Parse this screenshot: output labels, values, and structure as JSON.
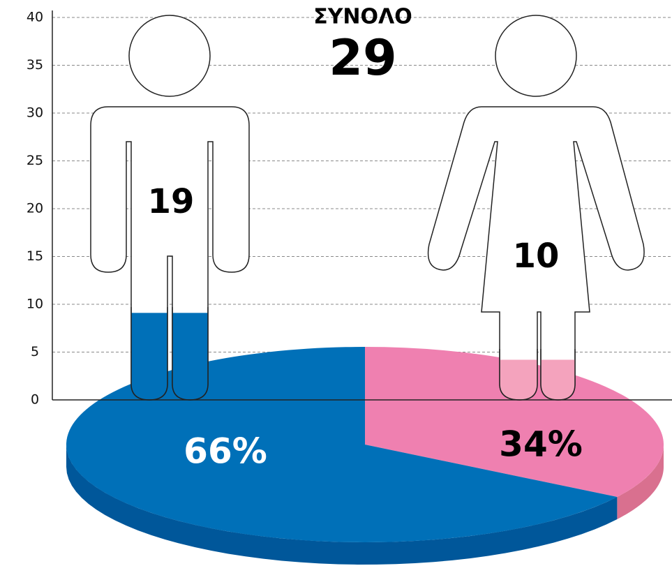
{
  "chart_data": {
    "type": "pictogram",
    "title": "ΣΥΝΟΛΟ",
    "total": 29,
    "ylim": [
      0,
      40
    ],
    "yticks": [
      0,
      5,
      10,
      15,
      20,
      25,
      30,
      35,
      40
    ],
    "grid": true,
    "figures": [
      {
        "value": 19,
        "level": 9.1,
        "fill_color": "#0070b8",
        "share": 66,
        "share_label": "66%",
        "share_color": "#0070b8",
        "side_color": "#00579a",
        "label_color": "#ffffff"
      },
      {
        "value": 10,
        "level": 4.2,
        "fill_color": "#f4a3bd",
        "share": 34,
        "share_label": "34%",
        "share_color": "#ef80b0",
        "side_color": "#d9708f",
        "label_color": "#000000"
      }
    ]
  }
}
